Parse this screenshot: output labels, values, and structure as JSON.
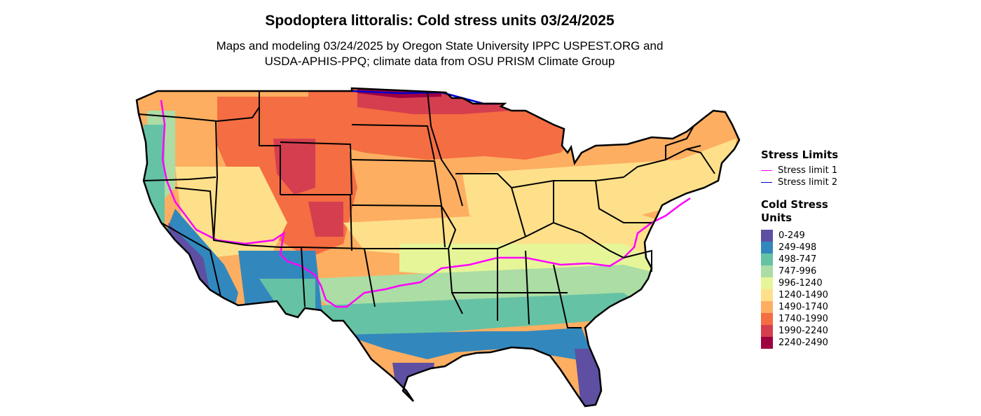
{
  "title": "Spodoptera littoralis: Cold stress units 03/24/2025",
  "subtitle_lines": [
    "Maps and modeling 03/24/2025 by Oregon State University IPPC USPEST.ORG and",
    "USDA-APHIS-PPQ; climate data from OSU PRISM Climate Group"
  ],
  "stress_limits": {
    "title": "Stress Limits",
    "items": [
      {
        "label": "Stress limit 1",
        "color": "#ff00ff"
      },
      {
        "label": "Stress limit 2",
        "color": "#0000cc"
      }
    ]
  },
  "cold_stress_units": {
    "title": "Cold Stress Units",
    "bins": [
      {
        "label": "0-249",
        "color": "#5e4fa2"
      },
      {
        "label": "249-498",
        "color": "#3288bd"
      },
      {
        "label": "498-747",
        "color": "#66c2a5"
      },
      {
        "label": "747-996",
        "color": "#abdda4"
      },
      {
        "label": "996-1240",
        "color": "#e6f598"
      },
      {
        "label": "1240-1490",
        "color": "#fee08b"
      },
      {
        "label": "1490-1740",
        "color": "#fdae61"
      },
      {
        "label": "1740-1990",
        "color": "#f46d43"
      },
      {
        "label": "1990-2240",
        "color": "#d53e4f"
      },
      {
        "label": "2240-2490",
        "color": "#9e0142"
      }
    ]
  }
}
